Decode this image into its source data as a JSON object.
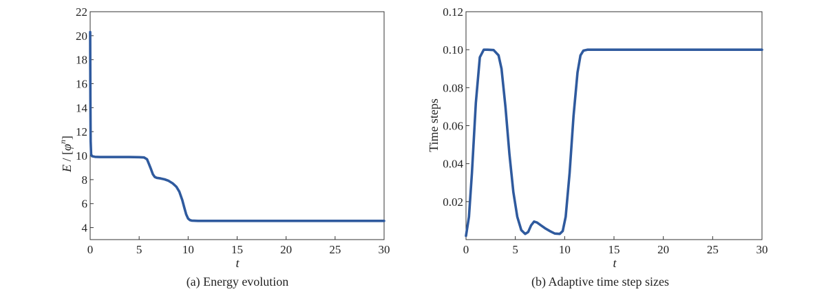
{
  "chart_data": [
    {
      "type": "line",
      "caption": "(a) Energy evolution",
      "title": "",
      "xlabel": "t",
      "ylabel": {
        "italic": "E",
        "sep": " / [",
        "symbol": "φ",
        "sup": "n",
        "close": "]"
      },
      "xlim": [
        0,
        30
      ],
      "ylim": [
        3,
        22
      ],
      "xticks": [
        "0",
        "5",
        "10",
        "15",
        "20",
        "25",
        "30"
      ],
      "xtick_values": [
        0,
        5,
        10,
        15,
        20,
        25,
        30
      ],
      "yticks": [
        "4",
        "6",
        "8",
        "10",
        "12",
        "14",
        "16",
        "18",
        "20",
        "22"
      ],
      "ytick_values": [
        4,
        6,
        8,
        10,
        12,
        14,
        16,
        18,
        20,
        22
      ],
      "grid": false,
      "color": "#2f5a9e",
      "series": [
        {
          "x": [
            0,
            0.02,
            0.05,
            0.1,
            0.2,
            0.5,
            1,
            2,
            3,
            4,
            5,
            5.5,
            5.8,
            6.0,
            6.2,
            6.4,
            6.6,
            6.8,
            7.2,
            7.6,
            8.0,
            8.4,
            8.8,
            9.1,
            9.4,
            9.6,
            9.8,
            10.0,
            10.2,
            10.4,
            10.6,
            11,
            12,
            15,
            20,
            25,
            30
          ],
          "y": [
            20.3,
            15.0,
            11.2,
            10.1,
            9.95,
            9.9,
            9.88,
            9.88,
            9.88,
            9.88,
            9.87,
            9.85,
            9.7,
            9.3,
            8.9,
            8.45,
            8.22,
            8.15,
            8.1,
            8.02,
            7.9,
            7.7,
            7.4,
            7.0,
            6.3,
            5.7,
            5.1,
            4.75,
            4.62,
            4.58,
            4.57,
            4.56,
            4.56,
            4.56,
            4.56,
            4.56,
            4.56
          ]
        }
      ]
    },
    {
      "type": "line",
      "caption": "(b) Adaptive time step sizes",
      "title": "",
      "xlabel": "t",
      "ylabel": "Time steps",
      "xlim": [
        0,
        30
      ],
      "ylim": [
        0,
        0.12
      ],
      "xticks": [
        "0",
        "5",
        "10",
        "15",
        "20",
        "25",
        "30"
      ],
      "xtick_values": [
        0,
        5,
        10,
        15,
        20,
        25,
        30
      ],
      "yticks": [
        "0.02",
        "0.04",
        "0.06",
        "0.08",
        "0.10",
        "0.12"
      ],
      "ytick_values": [
        0.02,
        0.04,
        0.06,
        0.08,
        0.1,
        0.12
      ],
      "grid": false,
      "color": "#2f5a9e",
      "series": [
        {
          "x": [
            0,
            0.3,
            0.6,
            1.0,
            1.4,
            1.8,
            2.2,
            2.8,
            3.3,
            3.6,
            4.0,
            4.4,
            4.8,
            5.2,
            5.6,
            6.0,
            6.3,
            6.6,
            6.9,
            7.2,
            7.6,
            8.0,
            8.5,
            9.0,
            9.5,
            9.8,
            10.1,
            10.5,
            10.9,
            11.3,
            11.6,
            11.9,
            12.3,
            13,
            15,
            20,
            25,
            30
          ],
          "y": [
            0.002,
            0.012,
            0.035,
            0.072,
            0.096,
            0.1,
            0.1,
            0.0998,
            0.097,
            0.09,
            0.07,
            0.045,
            0.025,
            0.012,
            0.005,
            0.003,
            0.004,
            0.0075,
            0.0095,
            0.009,
            0.0075,
            0.006,
            0.0045,
            0.0032,
            0.003,
            0.0045,
            0.012,
            0.035,
            0.065,
            0.088,
            0.097,
            0.0995,
            0.1,
            0.1,
            0.1,
            0.1,
            0.1,
            0.1
          ]
        }
      ]
    }
  ]
}
